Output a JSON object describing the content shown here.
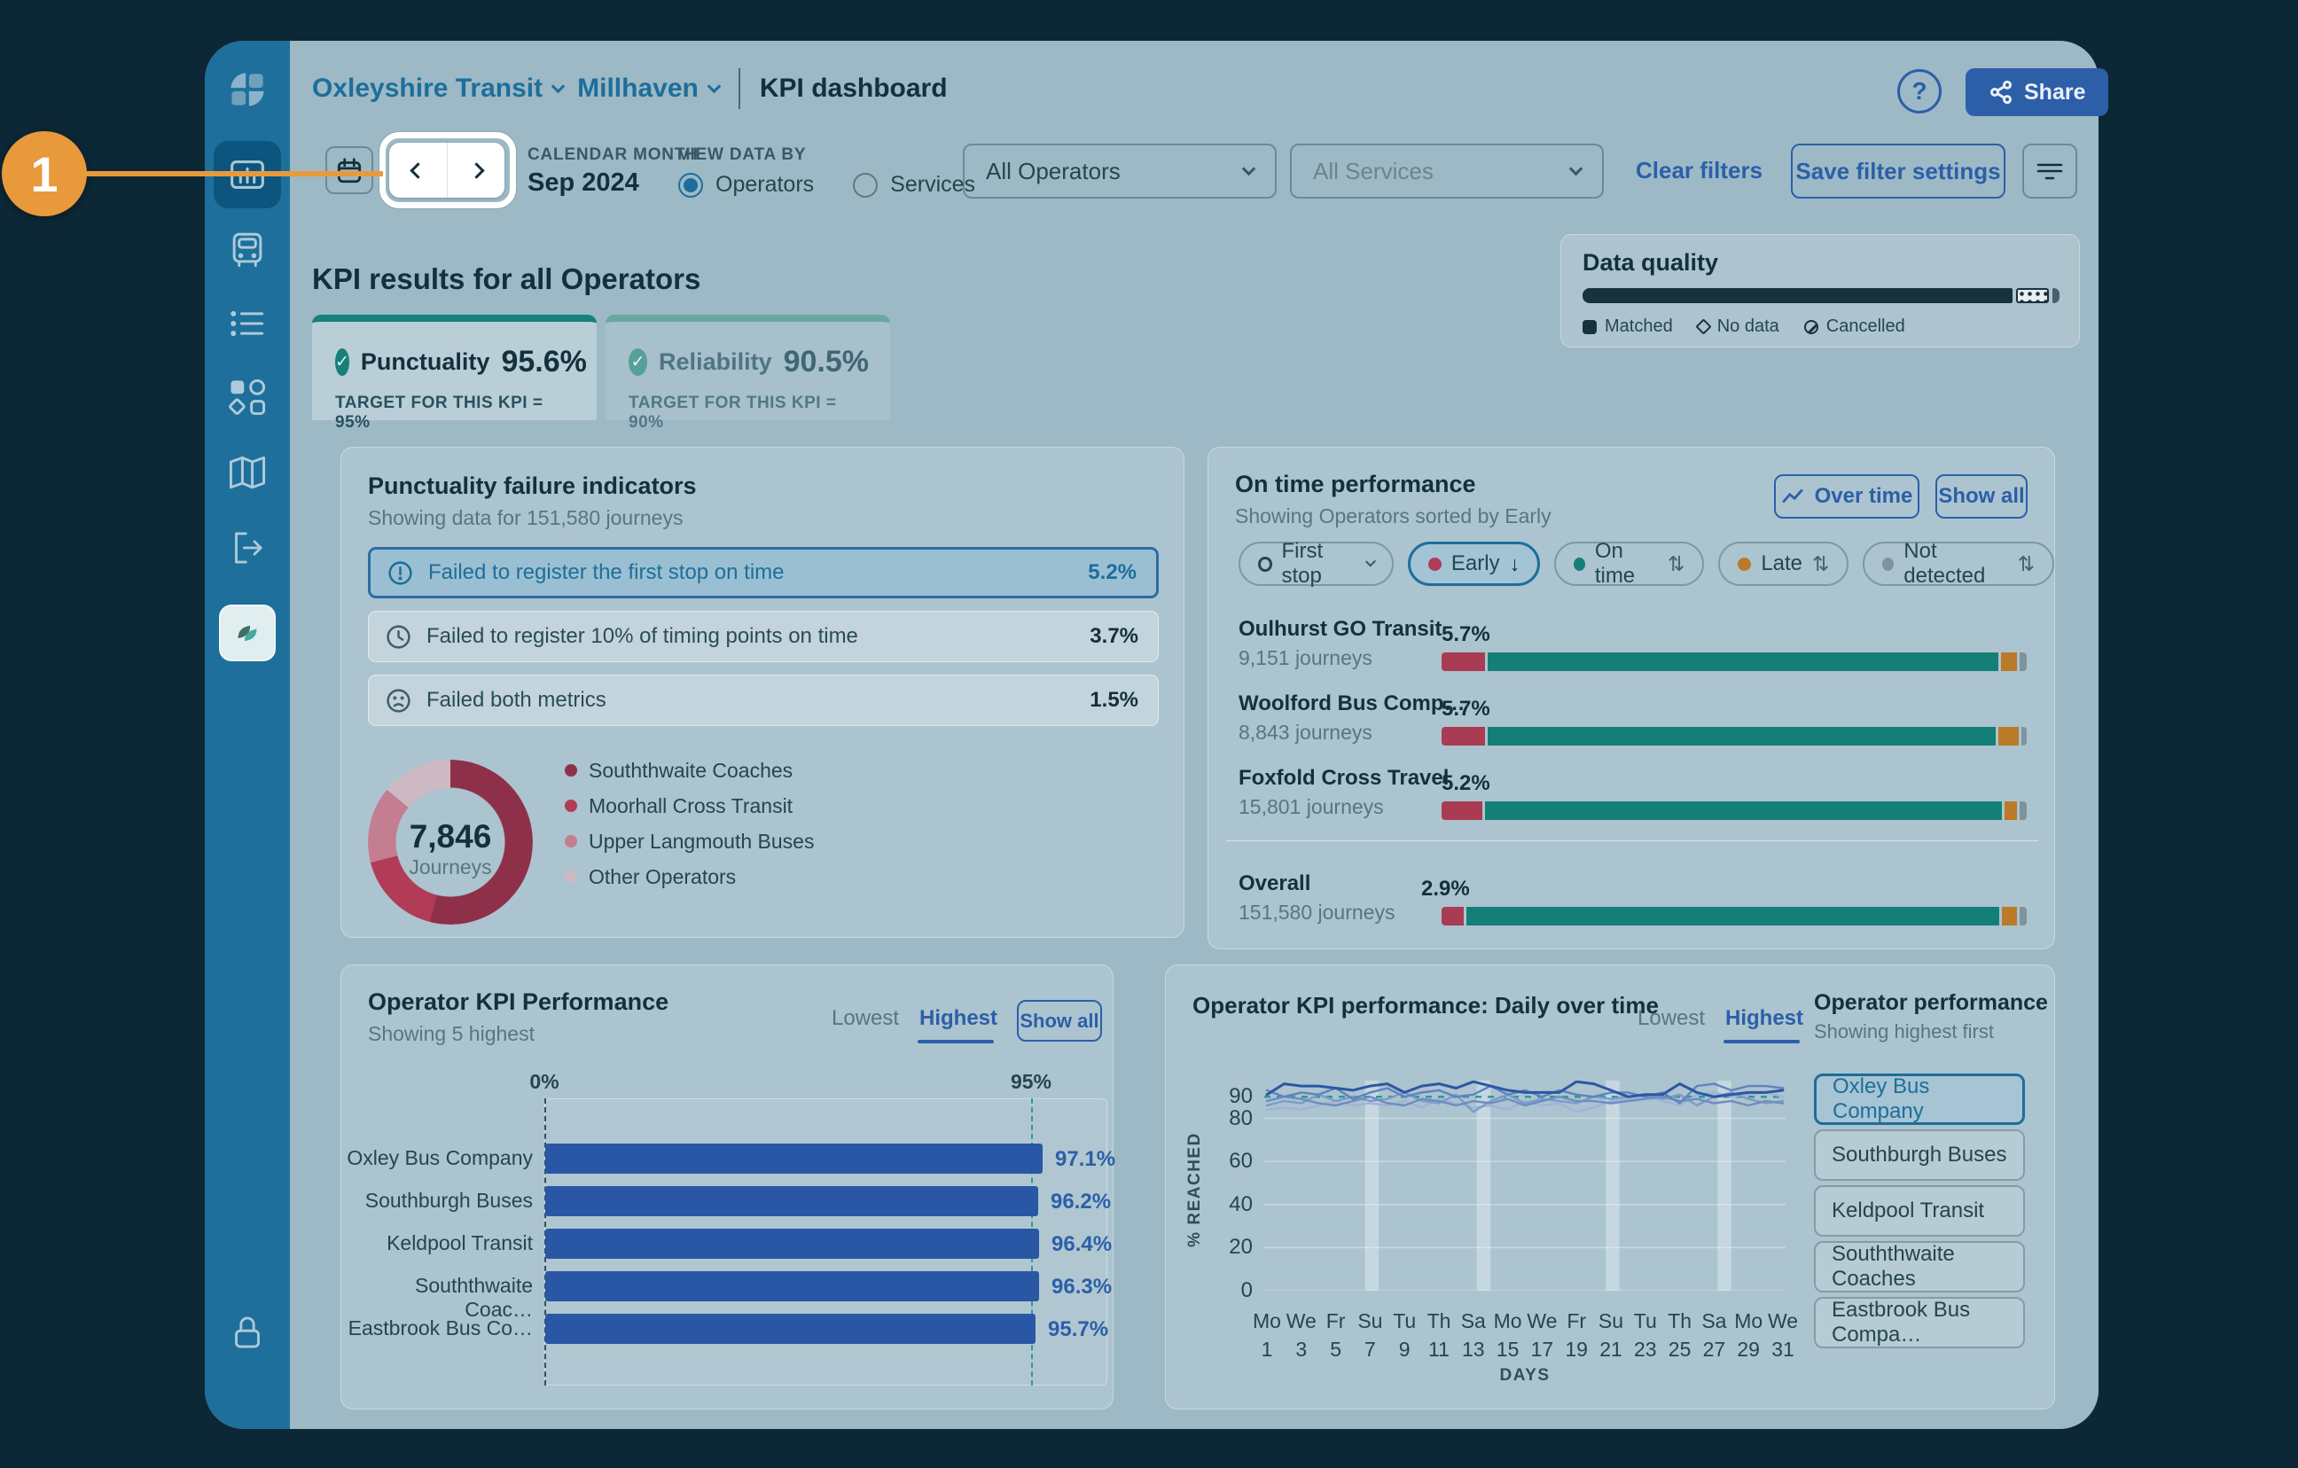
{
  "icons": {
    "help_glyph": "?",
    "sort_both": "⇅",
    "sort_down": "↓",
    "check": "✓"
  },
  "annotation": {
    "step": "1"
  },
  "topbar": {
    "breadcrumb_operator": "Oxleyshire Transit",
    "breadcrumb_area": "Millhaven",
    "page_title": "KPI dashboard",
    "share_label": "Share"
  },
  "filters": {
    "calendar_month_label": "CALENDAR MONTH",
    "calendar_month_value": "Sep 2024",
    "view_data_by_label": "VIEW DATA BY",
    "operators_radio": "Operators",
    "services_radio": "Services",
    "operators_dropdown": "All Operators",
    "services_dropdown": "All Services",
    "clear_filters": "Clear filters",
    "save_filter_settings": "Save filter settings"
  },
  "heading": "KPI results for all Operators",
  "data_quality": {
    "title": "Data quality",
    "segments": [
      {
        "label": "Matched",
        "pct": 91.5
      },
      {
        "label": "No data",
        "pct": 7.0
      },
      {
        "label": "Cancelled",
        "pct": 1.5
      }
    ]
  },
  "tabs": [
    {
      "label": "Punctuality",
      "value": "95.6%",
      "target": "TARGET FOR THIS KPI = 95%"
    },
    {
      "label": "Reliability",
      "value": "90.5%",
      "target": "TARGET FOR THIS KPI = 90%"
    }
  ],
  "failure_card": {
    "title": "Punctuality failure indicators",
    "subtitle": "Showing data for 151,580 journeys",
    "rows": [
      {
        "label": "Failed to register the first stop on time",
        "value": "5.2%"
      },
      {
        "label": "Failed to register 10% of timing points on time",
        "value": "3.7%"
      },
      {
        "label": "Failed both metrics",
        "value": "1.5%"
      }
    ],
    "donut": {
      "center_value": "7,846",
      "center_label": "Journeys",
      "segments": [
        {
          "label": "Souththwaite Coaches",
          "pct": 54,
          "color": "#8E3049"
        },
        {
          "label": "Moorhall Cross Transit",
          "pct": 17,
          "color": "#B23B57"
        },
        {
          "label": "Upper Langmouth Buses",
          "pct": 15,
          "color": "#C37E92"
        },
        {
          "label": "Other Operators",
          "pct": 14,
          "color": "#CDB9C1"
        }
      ]
    }
  },
  "on_time_card": {
    "title": "On time performance",
    "subtitle": "Showing Operators sorted by Early",
    "over_time_button": "Over time",
    "show_all_button": "Show all",
    "first_stop_chip": "First stop",
    "chips": [
      {
        "label": "Early",
        "color": "#B23B57"
      },
      {
        "label": "On time",
        "color": "#147F76"
      },
      {
        "label": "Late",
        "color": "#BB7A28"
      },
      {
        "label": "Not detected",
        "color": "#7E939E"
      }
    ],
    "rows": [
      {
        "name": "Oulhurst GO Transit",
        "journeys": "9,151 journeys",
        "value": "5.7%",
        "segments": {
          "early": 7.5,
          "late": 2.8,
          "not_detected": 1.2
        }
      },
      {
        "name": "Woolford Bus Comp…",
        "journeys": "8,843 journeys",
        "value": "5.7%",
        "segments": {
          "early": 7.5,
          "late": 3.5,
          "not_detected": 1.0
        }
      },
      {
        "name": "Foxfold Cross Travel",
        "journeys": "15,801 journeys",
        "value": "5.2%",
        "segments": {
          "early": 7.0,
          "late": 2.2,
          "not_detected": 1.2
        }
      }
    ],
    "overall": {
      "name": "Overall",
      "journeys": "151,580 journeys",
      "value": "2.9%",
      "segments": {
        "early": 3.8,
        "late": 2.6,
        "not_detected": 1.2
      }
    }
  },
  "operator_kpi_card": {
    "title": "Operator KPI Performance",
    "subtitle": "Showing 5 highest",
    "lowest_label": "Lowest",
    "highest_label": "Highest",
    "show_all_button": "Show all",
    "axis_min_label": "0%",
    "axis_max_label": "95%",
    "chart": {
      "type": "bar",
      "target_pct": 95,
      "bars": [
        {
          "label": "Oxley Bus Company",
          "value": 97.1,
          "display": "97.1%"
        },
        {
          "label": "Southburgh Buses",
          "value": 96.2,
          "display": "96.2%"
        },
        {
          "label": "Keldpool Transit",
          "value": 96.4,
          "display": "96.4%"
        },
        {
          "label": "Souththwaite Coac…",
          "value": 96.3,
          "display": "96.3%"
        },
        {
          "label": "Eastbrook Bus Co…",
          "value": 95.7,
          "display": "95.7%"
        }
      ]
    }
  },
  "daily_card": {
    "title": "Operator KPI performance: Daily over time",
    "lowest_label": "Lowest",
    "highest_label": "Highest",
    "ylabel": "% REACHED",
    "xlabel": "DAYS",
    "chart": {
      "type": "line",
      "target_value": 90,
      "ymax": 97.5,
      "yticks": [
        90,
        80,
        60,
        40,
        20,
        0
      ],
      "x_days": [
        {
          "name": "Mo",
          "num": "1"
        },
        {
          "name": "We",
          "num": "3"
        },
        {
          "name": "Fr",
          "num": "5"
        },
        {
          "name": "Su",
          "num": "7"
        },
        {
          "name": "Tu",
          "num": "9"
        },
        {
          "name": "Th",
          "num": "11"
        },
        {
          "name": "Sa",
          "num": "13"
        },
        {
          "name": "Mo",
          "num": "15"
        },
        {
          "name": "We",
          "num": "17"
        },
        {
          "name": "Fr",
          "num": "19"
        },
        {
          "name": "Su",
          "num": "21"
        },
        {
          "name": "Tu",
          "num": "23"
        },
        {
          "name": "Th",
          "num": "25"
        },
        {
          "name": "Sa",
          "num": "27"
        },
        {
          "name": "Mo",
          "num": "29"
        },
        {
          "name": "We",
          "num": "31"
        }
      ],
      "weekend_bands": [
        [
          6.7,
          7.5
        ],
        [
          13.2,
          14.0
        ],
        [
          20.7,
          21.5
        ],
        [
          27.2,
          28.0
        ]
      ],
      "series": [
        {
          "color": "#9FB4DA",
          "values": [
            84,
            85,
            84,
            86,
            88,
            86,
            87,
            86,
            88,
            85,
            89,
            87,
            85,
            86,
            84,
            88,
            86,
            87,
            83,
            85,
            88,
            89,
            90,
            88,
            86,
            91,
            92,
            90,
            91,
            92,
            90
          ]
        },
        {
          "color": "#7D9BCC",
          "values": [
            86,
            88,
            87,
            91,
            88,
            90,
            88,
            89,
            92,
            88,
            87,
            91,
            83,
            88,
            91,
            87,
            89,
            88,
            87,
            90,
            89,
            90,
            91,
            89,
            91,
            86,
            90,
            92,
            89,
            87,
            88
          ]
        },
        {
          "color": "#6E8DC0",
          "values": [
            88,
            90,
            89,
            87,
            86,
            88,
            90,
            87,
            86,
            89,
            88,
            86,
            88,
            87,
            89,
            86,
            88,
            90,
            88,
            88,
            87,
            88,
            89,
            90,
            88,
            89,
            87,
            88,
            86,
            88,
            87
          ]
        },
        {
          "color": "#5F83BF",
          "values": [
            93,
            90,
            92,
            91,
            94,
            89,
            92,
            94,
            90,
            92,
            93,
            90,
            91,
            95,
            91,
            93,
            90,
            93,
            91,
            90,
            92,
            92,
            90,
            92,
            87,
            95,
            96,
            93,
            95,
            95,
            94
          ]
        },
        {
          "color": "#2B57A3",
          "values": [
            91,
            96,
            95,
            95,
            94,
            93,
            95,
            96,
            92,
            95,
            96,
            94,
            97,
            95,
            93,
            92,
            92,
            92,
            97,
            96,
            93,
            90,
            91,
            91,
            96,
            92,
            90,
            91,
            92,
            92,
            93
          ]
        }
      ]
    },
    "panel": {
      "title": "Operator performance",
      "subtitle": "Showing highest first",
      "items": [
        "Oxley Bus Company",
        "Southburgh Buses",
        "Keldpool Transit",
        "Souththwaite Coaches",
        "Eastbrook Bus Compa…"
      ]
    }
  }
}
